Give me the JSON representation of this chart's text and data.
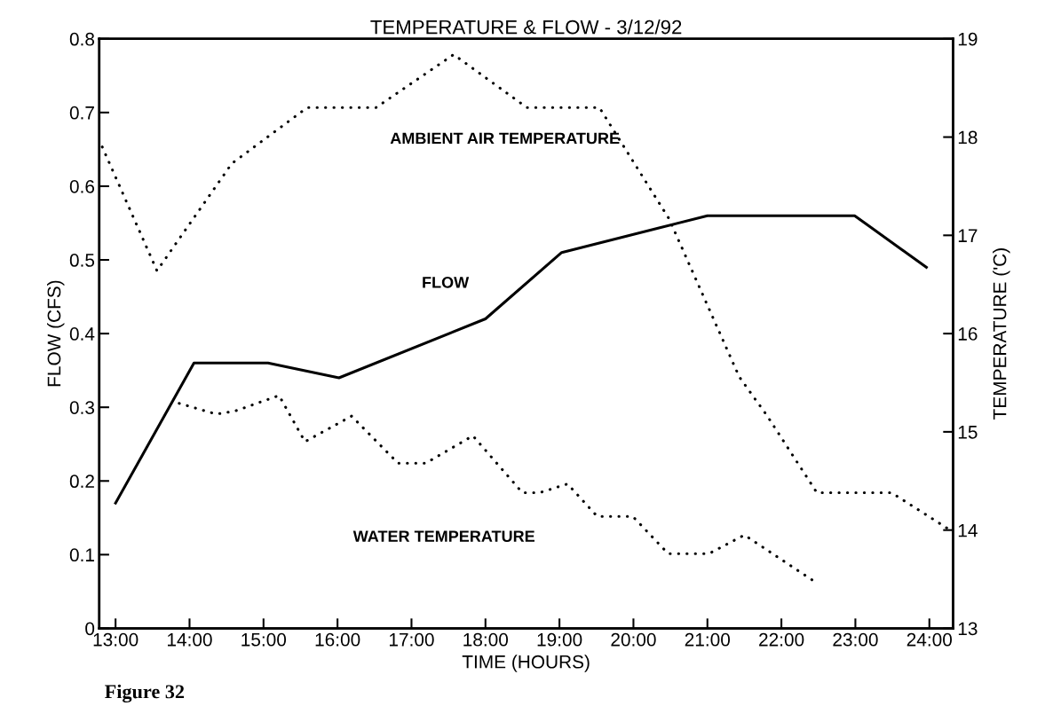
{
  "chart_data": {
    "type": "line",
    "title": "TEMPERATURE & FLOW - 3/12/92",
    "xlabel": "TIME (HOURS)",
    "ylabel": "FLOW (CFS)",
    "y2label": "TEMPERATURE ('C)",
    "xlim": [
      12.78,
      24.32
    ],
    "xticks": [
      {
        "value": 13,
        "label": "13:00"
      },
      {
        "value": 14,
        "label": "14:00"
      },
      {
        "value": 15,
        "label": "15:00"
      },
      {
        "value": 16,
        "label": "16:00"
      },
      {
        "value": 17,
        "label": "17:00"
      },
      {
        "value": 18,
        "label": "18:00"
      },
      {
        "value": 19,
        "label": "19:00"
      },
      {
        "value": 20,
        "label": "20:00"
      },
      {
        "value": 21,
        "label": "21:00"
      },
      {
        "value": 22,
        "label": "22:00"
      },
      {
        "value": 23,
        "label": "23:00"
      },
      {
        "value": 24,
        "label": "24:00"
      }
    ],
    "ylim": [
      0,
      0.8
    ],
    "yticks": [
      0,
      0.1,
      0.2,
      0.3,
      0.4,
      0.5,
      0.6,
      0.7,
      0.8
    ],
    "y2lim": [
      13,
      19
    ],
    "y2ticks": [
      13,
      14,
      15,
      16,
      17,
      18,
      19
    ],
    "grid": false,
    "legend": false,
    "marker": "none",
    "series": [
      {
        "name": "FLOW",
        "color": "#000000",
        "line_style": "solid",
        "x": [
          13.0,
          14.06,
          15.06,
          16.02,
          18.0,
          19.03,
          21.0,
          22.99,
          23.96
        ],
        "values": [
          0.17,
          0.36,
          0.36,
          0.34,
          0.42,
          0.51,
          0.56,
          0.56,
          0.49
        ]
      },
      {
        "name": "AMBIENT AIR TEMPERATURE",
        "color": "#000000",
        "line_style": "dotted",
        "axis": "y2",
        "x": [
          12.82,
          13.56,
          14.57,
          15.59,
          16.52,
          17.57,
          18.56,
          19.54,
          20.48,
          21.43,
          21.81,
          22.48,
          23.49,
          24.26
        ],
        "values": [
          17.9,
          16.64,
          17.73,
          18.3,
          18.3,
          18.84,
          18.3,
          18.3,
          17.17,
          15.56,
          15.16,
          14.38,
          14.38,
          14.01
        ]
      },
      {
        "name": "WATER TEMPERATURE",
        "color": "#000000",
        "line_style": "dotted",
        "axis": "y2",
        "x": [
          13.86,
          14.36,
          14.61,
          15.21,
          15.56,
          16.19,
          16.82,
          17.19,
          17.83,
          18.5,
          18.73,
          19.11,
          19.51,
          19.99,
          20.47,
          21.02,
          21.5,
          22.48
        ],
        "values": [
          15.29,
          15.18,
          15.21,
          15.37,
          14.9,
          15.16,
          14.68,
          14.68,
          14.96,
          14.38,
          14.38,
          14.47,
          14.14,
          14.14,
          13.76,
          13.76,
          13.95,
          13.46
        ]
      }
    ],
    "annotations": [
      "Figure 32"
    ]
  }
}
